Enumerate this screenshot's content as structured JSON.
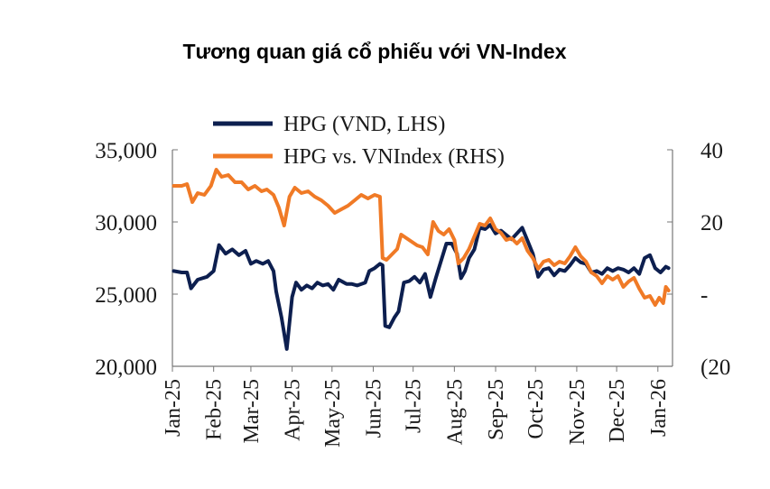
{
  "chart_data": {
    "type": "line",
    "title": "Tương quan giá cổ phiếu với VN-Index",
    "x_ticks": [
      "Jan-25",
      "Feb-25",
      "Mar-25",
      "Apr-25",
      "May-25",
      "Jun-25",
      "Jul-25",
      "Aug-25",
      "Sep-25",
      "Oct-25",
      "Nov-25",
      "Dec-25",
      "Jan-26"
    ],
    "y_left": {
      "ticks": [
        "35,000",
        "30,000",
        "25,000",
        "20,000"
      ],
      "tick_values": [
        35000,
        30000,
        25000,
        20000
      ],
      "range": [
        20000,
        35000
      ]
    },
    "y_right": {
      "ticks": [
        "40",
        "20",
        "-",
        "(20"
      ],
      "tick_values": [
        40,
        20,
        0,
        -20
      ],
      "range": [
        -20,
        40
      ]
    },
    "legend_position": "top",
    "series": [
      {
        "name": "HPG (VND, LHS)",
        "axis": "left",
        "color": "#0d1f4f",
        "points": [
          [
            "2025-01-02",
            26600
          ],
          [
            "2025-01-08",
            26500
          ],
          [
            "2025-01-12",
            26500
          ],
          [
            "2025-01-15",
            25400
          ],
          [
            "2025-01-20",
            26000
          ],
          [
            "2025-01-27",
            26200
          ],
          [
            "2025-02-01",
            26600
          ],
          [
            "2025-02-05",
            28400
          ],
          [
            "2025-02-10",
            27800
          ],
          [
            "2025-02-15",
            28100
          ],
          [
            "2025-02-20",
            27700
          ],
          [
            "2025-02-25",
            28000
          ],
          [
            "2025-03-01",
            27100
          ],
          [
            "2025-03-05",
            27300
          ],
          [
            "2025-03-10",
            27100
          ],
          [
            "2025-03-14",
            27300
          ],
          [
            "2025-03-18",
            26600
          ],
          [
            "2025-03-20",
            25200
          ],
          [
            "2025-03-24",
            23400
          ],
          [
            "2025-03-28",
            21200
          ],
          [
            "2025-04-01",
            24800
          ],
          [
            "2025-04-04",
            25800
          ],
          [
            "2025-04-08",
            25300
          ],
          [
            "2025-04-12",
            25600
          ],
          [
            "2025-04-16",
            25400
          ],
          [
            "2025-04-20",
            25800
          ],
          [
            "2025-04-24",
            25600
          ],
          [
            "2025-04-28",
            25700
          ],
          [
            "2025-05-02",
            25300
          ],
          [
            "2025-05-06",
            26000
          ],
          [
            "2025-05-12",
            25700
          ],
          [
            "2025-05-16",
            25700
          ],
          [
            "2025-05-20",
            25600
          ],
          [
            "2025-05-26",
            25800
          ],
          [
            "2025-05-29",
            26600
          ],
          [
            "2025-06-02",
            26800
          ],
          [
            "2025-06-06",
            27100
          ],
          [
            "2025-06-08",
            27000
          ],
          [
            "2025-06-10",
            22800
          ],
          [
            "2025-06-13",
            22700
          ],
          [
            "2025-06-17",
            23400
          ],
          [
            "2025-06-20",
            23800
          ],
          [
            "2025-06-24",
            25800
          ],
          [
            "2025-06-28",
            25900
          ],
          [
            "2025-07-02",
            26200
          ],
          [
            "2025-07-06",
            25800
          ],
          [
            "2025-07-10",
            26400
          ],
          [
            "2025-07-14",
            24800
          ],
          [
            "2025-07-18",
            26100
          ],
          [
            "2025-07-22",
            27300
          ],
          [
            "2025-07-26",
            28500
          ],
          [
            "2025-07-30",
            28500
          ],
          [
            "2025-08-03",
            27800
          ],
          [
            "2025-08-06",
            26100
          ],
          [
            "2025-08-09",
            26600
          ],
          [
            "2025-08-12",
            27500
          ],
          [
            "2025-08-16",
            28100
          ],
          [
            "2025-08-20",
            29600
          ],
          [
            "2025-08-24",
            29500
          ],
          [
            "2025-08-28",
            29800
          ],
          [
            "2025-09-01",
            29200
          ],
          [
            "2025-09-05",
            29400
          ],
          [
            "2025-09-09",
            29100
          ],
          [
            "2025-09-13",
            28800
          ],
          [
            "2025-09-17",
            29200
          ],
          [
            "2025-09-21",
            29600
          ],
          [
            "2025-09-25",
            28700
          ],
          [
            "2025-09-29",
            27800
          ],
          [
            "2025-10-03",
            26200
          ],
          [
            "2025-10-07",
            26700
          ],
          [
            "2025-10-11",
            26800
          ],
          [
            "2025-10-15",
            26300
          ],
          [
            "2025-10-19",
            26700
          ],
          [
            "2025-10-23",
            26600
          ],
          [
            "2025-10-27",
            27000
          ],
          [
            "2025-10-31",
            27500
          ],
          [
            "2025-11-04",
            27200
          ],
          [
            "2025-11-08",
            27100
          ],
          [
            "2025-11-12",
            26500
          ],
          [
            "2025-11-16",
            26600
          ],
          [
            "2025-11-20",
            26400
          ],
          [
            "2025-11-24",
            26800
          ],
          [
            "2025-11-28",
            26600
          ],
          [
            "2025-12-02",
            26800
          ],
          [
            "2025-12-06",
            26700
          ],
          [
            "2025-12-10",
            26500
          ],
          [
            "2025-12-14",
            26800
          ],
          [
            "2025-12-18",
            26400
          ],
          [
            "2025-12-22",
            27500
          ],
          [
            "2025-12-26",
            27700
          ],
          [
            "2025-12-30",
            26800
          ],
          [
            "2026-01-03",
            26500
          ],
          [
            "2026-01-07",
            26900
          ],
          [
            "2026-01-09",
            26800
          ]
        ]
      },
      {
        "name": "HPG vs. VNIndex (RHS)",
        "axis": "right",
        "color": "#f07a26",
        "points": [
          [
            "2025-01-02",
            30
          ],
          [
            "2025-01-08",
            30
          ],
          [
            "2025-01-12",
            30.5
          ],
          [
            "2025-01-16",
            25.5
          ],
          [
            "2025-01-20",
            28
          ],
          [
            "2025-01-25",
            27.5
          ],
          [
            "2025-01-30",
            30
          ],
          [
            "2025-02-03",
            34.5
          ],
          [
            "2025-02-07",
            32.5
          ],
          [
            "2025-02-12",
            33
          ],
          [
            "2025-02-17",
            31
          ],
          [
            "2025-02-22",
            31
          ],
          [
            "2025-02-27",
            29
          ],
          [
            "2025-03-04",
            30
          ],
          [
            "2025-03-09",
            28.5
          ],
          [
            "2025-03-13",
            29
          ],
          [
            "2025-03-18",
            27.5
          ],
          [
            "2025-03-22",
            24
          ],
          [
            "2025-03-26",
            19
          ],
          [
            "2025-03-30",
            27
          ],
          [
            "2025-04-03",
            29.5
          ],
          [
            "2025-04-08",
            28
          ],
          [
            "2025-04-13",
            28.5
          ],
          [
            "2025-04-18",
            27
          ],
          [
            "2025-04-23",
            26
          ],
          [
            "2025-04-28",
            24.5
          ],
          [
            "2025-05-03",
            22.5
          ],
          [
            "2025-05-08",
            23.5
          ],
          [
            "2025-05-13",
            24.5
          ],
          [
            "2025-05-18",
            26
          ],
          [
            "2025-05-23",
            27.5
          ],
          [
            "2025-05-28",
            26.5
          ],
          [
            "2025-06-02",
            27.5
          ],
          [
            "2025-06-06",
            27
          ],
          [
            "2025-06-08",
            10
          ],
          [
            "2025-06-11",
            9.5
          ],
          [
            "2025-06-15",
            11
          ],
          [
            "2025-06-19",
            12.5
          ],
          [
            "2025-06-22",
            16.5
          ],
          [
            "2025-06-26",
            15.5
          ],
          [
            "2025-06-30",
            14.5
          ],
          [
            "2025-07-04",
            13.5
          ],
          [
            "2025-07-08",
            13
          ],
          [
            "2025-07-12",
            11
          ],
          [
            "2025-07-16",
            20
          ],
          [
            "2025-07-20",
            17.5
          ],
          [
            "2025-07-24",
            16.5
          ],
          [
            "2025-07-28",
            18
          ],
          [
            "2025-08-01",
            15
          ],
          [
            "2025-08-04",
            8.5
          ],
          [
            "2025-08-08",
            10
          ],
          [
            "2025-08-12",
            12.5
          ],
          [
            "2025-08-16",
            16
          ],
          [
            "2025-08-20",
            19.5
          ],
          [
            "2025-08-24",
            19
          ],
          [
            "2025-08-28",
            21
          ],
          [
            "2025-09-01",
            18
          ],
          [
            "2025-09-05",
            17
          ],
          [
            "2025-09-09",
            15
          ],
          [
            "2025-09-13",
            15.5
          ],
          [
            "2025-09-17",
            14
          ],
          [
            "2025-09-21",
            15.5
          ],
          [
            "2025-09-25",
            12
          ],
          [
            "2025-09-29",
            10
          ],
          [
            "2025-10-03",
            7
          ],
          [
            "2025-10-07",
            9
          ],
          [
            "2025-10-11",
            9.5
          ],
          [
            "2025-10-15",
            8
          ],
          [
            "2025-10-19",
            9
          ],
          [
            "2025-10-23",
            8.5
          ],
          [
            "2025-10-27",
            10.5
          ],
          [
            "2025-10-31",
            13
          ],
          [
            "2025-11-04",
            10.5
          ],
          [
            "2025-11-08",
            9
          ],
          [
            "2025-11-12",
            6
          ],
          [
            "2025-11-16",
            5
          ],
          [
            "2025-11-20",
            3
          ],
          [
            "2025-11-24",
            5
          ],
          [
            "2025-11-28",
            4
          ],
          [
            "2025-12-02",
            5
          ],
          [
            "2025-12-06",
            2
          ],
          [
            "2025-12-10",
            3.5
          ],
          [
            "2025-12-14",
            4.5
          ],
          [
            "2025-12-18",
            1.5
          ],
          [
            "2025-12-22",
            -1
          ],
          [
            "2025-12-26",
            -0.5
          ],
          [
            "2025-12-30",
            -3
          ],
          [
            "2026-01-02",
            -1
          ],
          [
            "2026-01-05",
            -2.5
          ],
          [
            "2026-01-07",
            2
          ],
          [
            "2026-01-09",
            1
          ]
        ]
      }
    ]
  }
}
